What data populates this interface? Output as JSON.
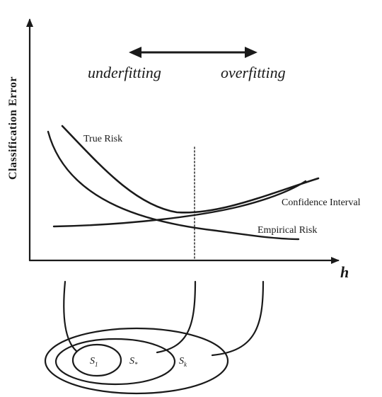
{
  "axes": {
    "y_label": "Classification  Error",
    "x_label": "h"
  },
  "regimes": {
    "left": "underfitting",
    "right": "overfitting"
  },
  "curves": {
    "true_risk": "True Risk",
    "confidence_interval": "Confidence Interval",
    "empirical_risk": "Empirical Risk"
  },
  "nested_sets": {
    "s1": "S",
    "s1_sub": "1",
    "s_star": "S",
    "s_star_sub": "*",
    "s_k": "S",
    "s_k_sub": "k"
  },
  "colors": {
    "ink": "#1a1a1a",
    "background": "#ffffff"
  }
}
